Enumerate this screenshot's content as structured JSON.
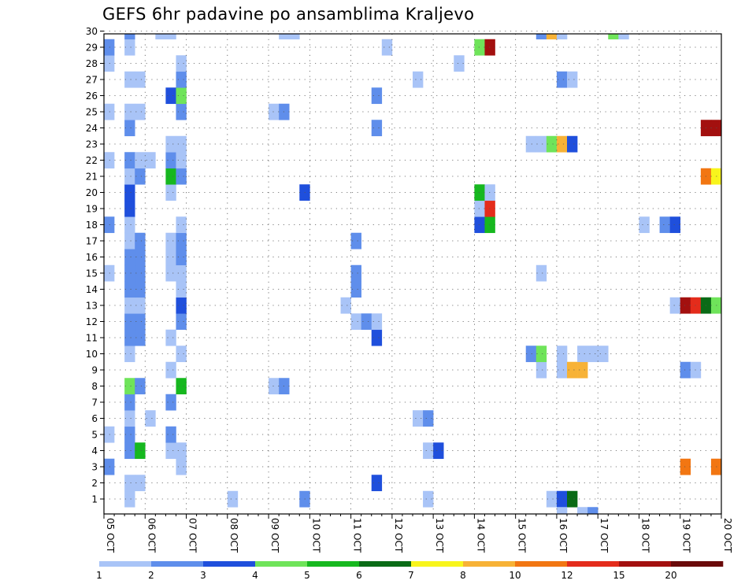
{
  "chart_data": {
    "type": "heatmap",
    "title": "GEFS 6hr padavine po ansamblima Kraljevo",
    "xlabel": "",
    "ylabel": "",
    "x_tick_labels": [
      "05 OCT",
      "06 OCT",
      "07 OCT",
      "08 OCT",
      "09 OCT",
      "10 OCT",
      "11 OCT",
      "12 OCT",
      "13 OCT",
      "14 OCT",
      "15 OCT",
      "16 OCT",
      "17 OCT",
      "18 OCT",
      "19 OCT",
      "20 OCT"
    ],
    "x_range_steps": [
      0,
      60
    ],
    "y_tick_labels": [
      "1",
      "2",
      "3",
      "4",
      "5",
      "6",
      "7",
      "8",
      "9",
      "10",
      "11",
      "12",
      "13",
      "14",
      "15",
      "16",
      "17",
      "18",
      "19",
      "20",
      "21",
      "22",
      "23",
      "24",
      "25",
      "26",
      "27",
      "28",
      "29",
      "30"
    ],
    "ylim": [
      0,
      30
    ],
    "grid": true,
    "colorbar": {
      "levels": [
        "1",
        "2",
        "3",
        "4",
        "5",
        "6",
        "7",
        "8",
        "10",
        "12",
        "15",
        "20"
      ],
      "colors": [
        "#a9c4f7",
        "#5f8eeb",
        "#1f4fdc",
        "#6fe45a",
        "#16b81f",
        "#0a6b16",
        "#f8f51c",
        "#f7b236",
        "#f27612",
        "#e42c1b",
        "#a3100f",
        "#6a0a0a"
      ]
    },
    "cells": [
      {
        "member": 1,
        "step": 2,
        "level": 1
      },
      {
        "member": 1,
        "step": 12,
        "level": 1
      },
      {
        "member": 1,
        "step": 19,
        "level": 2
      },
      {
        "member": 1,
        "step": 31,
        "level": 1
      },
      {
        "member": 1,
        "step": 43,
        "level": 1
      },
      {
        "member": 1,
        "step": 44,
        "level": 3
      },
      {
        "member": 1,
        "step": 45,
        "level": 6
      },
      {
        "member": 2,
        "step": 2,
        "level": 1
      },
      {
        "member": 2,
        "step": 3,
        "level": 1
      },
      {
        "member": 2,
        "step": 26,
        "level": 3
      },
      {
        "member": 3,
        "step": 0,
        "level": 2
      },
      {
        "member": 3,
        "step": 7,
        "level": 1
      },
      {
        "member": 3,
        "step": 56,
        "level": 9
      },
      {
        "member": 3,
        "step": 59,
        "level": 9
      },
      {
        "member": 3,
        "step": 60,
        "level": 9
      },
      {
        "member": 4,
        "step": 2,
        "level": 2
      },
      {
        "member": 4,
        "step": 3,
        "level": 5
      },
      {
        "member": 4,
        "step": 6,
        "level": 1
      },
      {
        "member": 4,
        "step": 7,
        "level": 1
      },
      {
        "member": 4,
        "step": 31,
        "level": 1
      },
      {
        "member": 4,
        "step": 32,
        "level": 3
      },
      {
        "member": 5,
        "step": 0,
        "level": 1
      },
      {
        "member": 5,
        "step": 2,
        "level": 2
      },
      {
        "member": 5,
        "step": 6,
        "level": 2
      },
      {
        "member": 6,
        "step": 2,
        "level": 1
      },
      {
        "member": 6,
        "step": 4,
        "level": 1
      },
      {
        "member": 6,
        "step": 30,
        "level": 1
      },
      {
        "member": 6,
        "step": 31,
        "level": 2
      },
      {
        "member": 7,
        "step": 2,
        "level": 2
      },
      {
        "member": 7,
        "step": 6,
        "level": 2
      },
      {
        "member": 8,
        "step": 2,
        "level": 4
      },
      {
        "member": 8,
        "step": 3,
        "level": 2
      },
      {
        "member": 8,
        "step": 7,
        "level": 5
      },
      {
        "member": 8,
        "step": 16,
        "level": 1
      },
      {
        "member": 8,
        "step": 17,
        "level": 2
      },
      {
        "member": 9,
        "step": 6,
        "level": 1
      },
      {
        "member": 9,
        "step": 42,
        "level": 1
      },
      {
        "member": 9,
        "step": 44,
        "level": 1
      },
      {
        "member": 9,
        "step": 45,
        "level": 8
      },
      {
        "member": 9,
        "step": 46,
        "level": 8
      },
      {
        "member": 9,
        "step": 56,
        "level": 2
      },
      {
        "member": 9,
        "step": 57,
        "level": 1
      },
      {
        "member": 10,
        "step": 2,
        "level": 1
      },
      {
        "member": 10,
        "step": 7,
        "level": 1
      },
      {
        "member": 10,
        "step": 41,
        "level": 2
      },
      {
        "member": 10,
        "step": 42,
        "level": 4
      },
      {
        "member": 10,
        "step": 44,
        "level": 1
      },
      {
        "member": 10,
        "step": 46,
        "level": 1
      },
      {
        "member": 10,
        "step": 47,
        "level": 1
      },
      {
        "member": 10,
        "step": 48,
        "level": 1
      },
      {
        "member": 11,
        "step": 2,
        "level": 2
      },
      {
        "member": 11,
        "step": 3,
        "level": 2
      },
      {
        "member": 11,
        "step": 6,
        "level": 1
      },
      {
        "member": 11,
        "step": 26,
        "level": 3
      },
      {
        "member": 12,
        "step": 2,
        "level": 2
      },
      {
        "member": 12,
        "step": 3,
        "level": 2
      },
      {
        "member": 12,
        "step": 7,
        "level": 2
      },
      {
        "member": 12,
        "step": 24,
        "level": 1
      },
      {
        "member": 12,
        "step": 25,
        "level": 2
      },
      {
        "member": 12,
        "step": 26,
        "level": 1
      },
      {
        "member": 13,
        "step": 2,
        "level": 1
      },
      {
        "member": 13,
        "step": 3,
        "level": 1
      },
      {
        "member": 13,
        "step": 7,
        "level": 3
      },
      {
        "member": 13,
        "step": 23,
        "level": 1
      },
      {
        "member": 13,
        "step": 55,
        "level": 1
      },
      {
        "member": 13,
        "step": 56,
        "level": 11
      },
      {
        "member": 13,
        "step": 57,
        "level": 10
      },
      {
        "member": 13,
        "step": 58,
        "level": 6
      },
      {
        "member": 13,
        "step": 59,
        "level": 4
      },
      {
        "member": 13,
        "step": 60,
        "level": 6
      },
      {
        "member": 14,
        "step": 2,
        "level": 2
      },
      {
        "member": 14,
        "step": 3,
        "level": 2
      },
      {
        "member": 14,
        "step": 7,
        "level": 1
      },
      {
        "member": 14,
        "step": 24,
        "level": 2
      },
      {
        "member": 15,
        "step": 0,
        "level": 1
      },
      {
        "member": 15,
        "step": 2,
        "level": 2
      },
      {
        "member": 15,
        "step": 3,
        "level": 2
      },
      {
        "member": 15,
        "step": 6,
        "level": 1
      },
      {
        "member": 15,
        "step": 7,
        "level": 1
      },
      {
        "member": 15,
        "step": 24,
        "level": 2
      },
      {
        "member": 15,
        "step": 42,
        "level": 1
      },
      {
        "member": 16,
        "step": 2,
        "level": 2
      },
      {
        "member": 16,
        "step": 3,
        "level": 2
      },
      {
        "member": 16,
        "step": 6,
        "level": 1
      },
      {
        "member": 16,
        "step": 7,
        "level": 2
      },
      {
        "member": 17,
        "step": 2,
        "level": 1
      },
      {
        "member": 17,
        "step": 3,
        "level": 2
      },
      {
        "member": 17,
        "step": 6,
        "level": 1
      },
      {
        "member": 17,
        "step": 7,
        "level": 2
      },
      {
        "member": 17,
        "step": 24,
        "level": 2
      },
      {
        "member": 18,
        "step": 0,
        "level": 2
      },
      {
        "member": 18,
        "step": 2,
        "level": 1
      },
      {
        "member": 18,
        "step": 7,
        "level": 1
      },
      {
        "member": 18,
        "step": 36,
        "level": 3
      },
      {
        "member": 18,
        "step": 37,
        "level": 5
      },
      {
        "member": 18,
        "step": 52,
        "level": 1
      },
      {
        "member": 18,
        "step": 54,
        "level": 2
      },
      {
        "member": 18,
        "step": 55,
        "level": 3
      },
      {
        "member": 19,
        "step": 2,
        "level": 3
      },
      {
        "member": 19,
        "step": 36,
        "level": 1
      },
      {
        "member": 19,
        "step": 37,
        "level": 10
      },
      {
        "member": 20,
        "step": 2,
        "level": 3
      },
      {
        "member": 20,
        "step": 6,
        "level": 1
      },
      {
        "member": 20,
        "step": 19,
        "level": 3
      },
      {
        "member": 20,
        "step": 36,
        "level": 5
      },
      {
        "member": 20,
        "step": 37,
        "level": 1
      },
      {
        "member": 21,
        "step": 2,
        "level": 1
      },
      {
        "member": 21,
        "step": 3,
        "level": 2
      },
      {
        "member": 21,
        "step": 6,
        "level": 5
      },
      {
        "member": 21,
        "step": 7,
        "level": 2
      },
      {
        "member": 21,
        "step": 58,
        "level": 9
      },
      {
        "member": 21,
        "step": 59,
        "level": 7
      },
      {
        "member": 22,
        "step": 0,
        "level": 1
      },
      {
        "member": 22,
        "step": 2,
        "level": 2
      },
      {
        "member": 22,
        "step": 3,
        "level": 1
      },
      {
        "member": 22,
        "step": 4,
        "level": 1
      },
      {
        "member": 22,
        "step": 6,
        "level": 2
      },
      {
        "member": 22,
        "step": 7,
        "level": 1
      },
      {
        "member": 23,
        "step": 6,
        "level": 1
      },
      {
        "member": 23,
        "step": 7,
        "level": 1
      },
      {
        "member": 23,
        "step": 41,
        "level": 1
      },
      {
        "member": 23,
        "step": 42,
        "level": 1
      },
      {
        "member": 23,
        "step": 43,
        "level": 4
      },
      {
        "member": 23,
        "step": 44,
        "level": 8
      },
      {
        "member": 23,
        "step": 45,
        "level": 3
      },
      {
        "member": 24,
        "step": 2,
        "level": 2
      },
      {
        "member": 24,
        "step": 26,
        "level": 2
      },
      {
        "member": 24,
        "step": 58,
        "level": 11
      },
      {
        "member": 24,
        "step": 59,
        "level": 11
      },
      {
        "member": 24,
        "step": 60,
        "level": 3
      },
      {
        "member": 25,
        "step": 0,
        "level": 1
      },
      {
        "member": 25,
        "step": 2,
        "level": 1
      },
      {
        "member": 25,
        "step": 3,
        "level": 1
      },
      {
        "member": 25,
        "step": 7,
        "level": 2
      },
      {
        "member": 25,
        "step": 16,
        "level": 1
      },
      {
        "member": 25,
        "step": 17,
        "level": 2
      },
      {
        "member": 25,
        "step": 60,
        "level": 1
      },
      {
        "member": 26,
        "step": 6,
        "level": 3
      },
      {
        "member": 26,
        "step": 7,
        "level": 4
      },
      {
        "member": 26,
        "step": 26,
        "level": 2
      },
      {
        "member": 26,
        "step": 60,
        "level": 1
      },
      {
        "member": 27,
        "step": 2,
        "level": 1
      },
      {
        "member": 27,
        "step": 3,
        "level": 1
      },
      {
        "member": 27,
        "step": 7,
        "level": 2
      },
      {
        "member": 27,
        "step": 30,
        "level": 1
      },
      {
        "member": 27,
        "step": 44,
        "level": 2
      },
      {
        "member": 27,
        "step": 45,
        "level": 1
      },
      {
        "member": 28,
        "step": 0,
        "level": 1
      },
      {
        "member": 28,
        "step": 7,
        "level": 1
      },
      {
        "member": 28,
        "step": 34,
        "level": 1
      },
      {
        "member": 29,
        "step": 0,
        "level": 2
      },
      {
        "member": 29,
        "step": 2,
        "level": 1
      },
      {
        "member": 29,
        "step": 27,
        "level": 1
      },
      {
        "member": 29,
        "step": 36,
        "level": 4
      },
      {
        "member": 29,
        "step": 37,
        "level": 11
      },
      {
        "member": 30,
        "step": 2,
        "level": 2
      },
      {
        "member": 30,
        "step": 5,
        "level": 1
      },
      {
        "member": 30,
        "step": 6,
        "level": 1
      },
      {
        "member": 30,
        "step": 17,
        "level": 1
      },
      {
        "member": 30,
        "step": 18,
        "level": 1
      },
      {
        "member": 30,
        "step": 42,
        "level": 2
      },
      {
        "member": 30,
        "step": 43,
        "level": 8
      },
      {
        "member": 30,
        "step": 44,
        "level": 1
      },
      {
        "member": 30,
        "step": 49,
        "level": 4
      },
      {
        "member": 30,
        "step": 50,
        "level": 1
      },
      {
        "member": 30,
        "step": 60,
        "level": 1
      },
      {
        "member": 0,
        "step": 44,
        "level": 1
      },
      {
        "member": 0,
        "step": 46,
        "level": 1
      },
      {
        "member": 0,
        "step": 47,
        "level": 2
      }
    ]
  }
}
